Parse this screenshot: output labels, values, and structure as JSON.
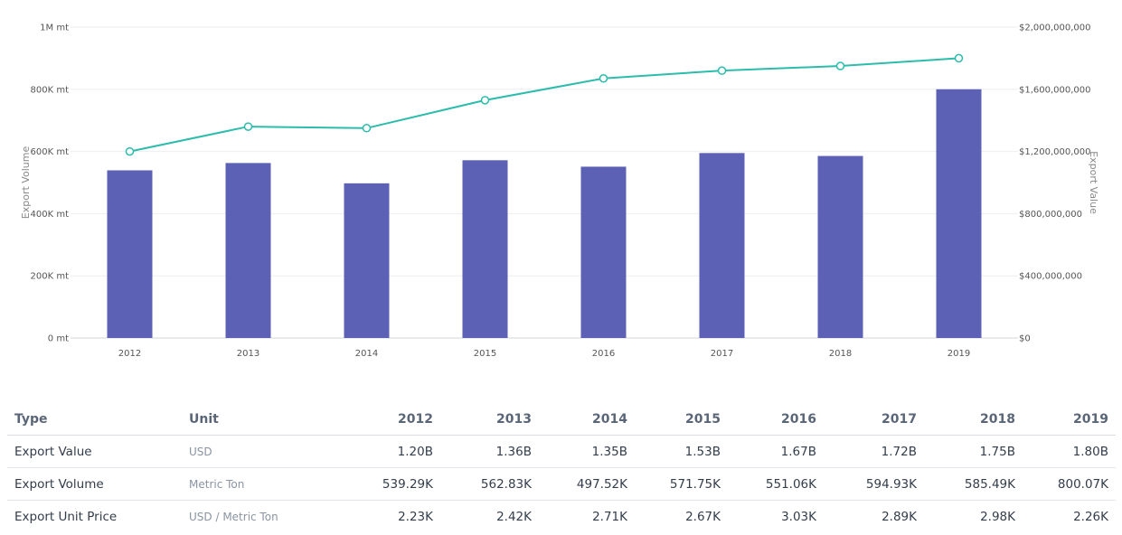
{
  "chart_data": {
    "type": "bar",
    "categories": [
      "2012",
      "2013",
      "2014",
      "2015",
      "2016",
      "2017",
      "2018",
      "2019"
    ],
    "series": [
      {
        "name": "Export Volume",
        "type": "bar",
        "axis": "left",
        "color": "#5c61b5",
        "values": [
          539290,
          562830,
          497520,
          571750,
          551060,
          594930,
          585490,
          800070
        ]
      },
      {
        "name": "Export Value",
        "type": "line",
        "axis": "right",
        "color": "#2bbcab",
        "values": [
          1200000000,
          1360000000,
          1350000000,
          1530000000,
          1670000000,
          1720000000,
          1750000000,
          1800000000
        ]
      }
    ],
    "ylabel": "Export Volume",
    "y2label": "Export Value",
    "ylim": [
      0,
      1000000
    ],
    "y2lim": [
      0,
      2000000000
    ],
    "y_ticks": [
      {
        "value": 0,
        "label": "0 mt"
      },
      {
        "value": 200000,
        "label": "200K mt"
      },
      {
        "value": 400000,
        "label": "400K mt"
      },
      {
        "value": 600000,
        "label": "600K mt"
      },
      {
        "value": 800000,
        "label": "800K mt"
      },
      {
        "value": 1000000,
        "label": "1M mt"
      }
    ],
    "y2_ticks": [
      {
        "value": 0,
        "label": "$0"
      },
      {
        "value": 400000000,
        "label": "$400,000,000"
      },
      {
        "value": 800000000,
        "label": "$800,000,000"
      },
      {
        "value": 1200000000,
        "label": "$1,200,000,000"
      },
      {
        "value": 1600000000,
        "label": "$1,600,000,000"
      },
      {
        "value": 2000000000,
        "label": "$2,000,000,000"
      }
    ],
    "grid": true,
    "legend": "none"
  },
  "table": {
    "headers": [
      "Type",
      "Unit",
      "2012",
      "2013",
      "2014",
      "2015",
      "2016",
      "2017",
      "2018",
      "2019"
    ],
    "rows": [
      {
        "type": "Export Value",
        "unit": "USD",
        "values": [
          "1.20B",
          "1.36B",
          "1.35B",
          "1.53B",
          "1.67B",
          "1.72B",
          "1.75B",
          "1.80B"
        ]
      },
      {
        "type": "Export Volume",
        "unit": "Metric Ton",
        "values": [
          "539.29K",
          "562.83K",
          "497.52K",
          "571.75K",
          "551.06K",
          "594.93K",
          "585.49K",
          "800.07K"
        ]
      },
      {
        "type": "Export Unit Price",
        "unit": "USD / Metric Ton",
        "values": [
          "2.23K",
          "2.42K",
          "2.71K",
          "2.67K",
          "3.03K",
          "2.89K",
          "2.98K",
          "2.26K"
        ]
      }
    ]
  }
}
